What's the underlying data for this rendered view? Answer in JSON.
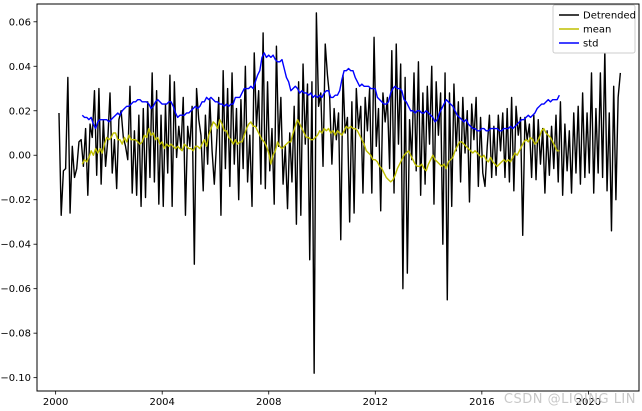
{
  "watermark": "CSDN @LIQING LIN",
  "colors": {
    "detrended": "#000000",
    "mean": "#bfbf00",
    "std": "#0000ff"
  },
  "chart_data": {
    "type": "line",
    "title": "",
    "xlabel": "",
    "ylabel": "",
    "xlim": [
      1999.3,
      2021.9
    ],
    "ylim": [
      -0.106,
      0.068
    ],
    "xticks": [
      "2000",
      "2004",
      "2008",
      "2012",
      "2016",
      "2020"
    ],
    "yticks": [
      "0.06",
      "0.04",
      "0.02",
      "0.00",
      "−0.02",
      "−0.04",
      "−0.06",
      "−0.08",
      "−0.10"
    ],
    "legend": {
      "position": "top-right",
      "entries": [
        "Detrended",
        "mean",
        "std"
      ]
    },
    "grid": false,
    "series": [
      {
        "name": "Detrended",
        "start_year": 2000.125,
        "step_years": 0.0833,
        "values": [
          0.019,
          -0.027,
          -0.007,
          -0.006,
          0.035,
          -0.026,
          0.004,
          -0.01,
          -0.006,
          0.006,
          0.007,
          -0.005,
          0.012,
          -0.018,
          0.014,
          0.008,
          0.029,
          -0.009,
          0.03,
          -0.013,
          0.016,
          -0.005,
          0.007,
          0.028,
          -0.008,
          0.007,
          -0.015,
          0.016,
          0.02,
          0.008,
          0.004,
          -0.002,
          0.031,
          -0.017,
          0.011,
          -0.018,
          0.018,
          -0.023,
          0.021,
          -0.019,
          0.024,
          -0.01,
          0.037,
          -0.012,
          0.029,
          -0.022,
          0.018,
          -0.023,
          0.023,
          -0.008,
          0.036,
          -0.023,
          0.033,
          -0.001,
          0.013,
          0.003,
          0.026,
          -0.027,
          0.013,
          0.004,
          0.022,
          -0.049,
          0.03,
          0.016,
          0.009,
          -0.016,
          0.018,
          -0.004,
          0.025,
          0.002,
          -0.013,
          0.005,
          0.026,
          -0.027,
          0.038,
          -0.006,
          0.03,
          -0.014,
          0.037,
          -0.004,
          0.021,
          -0.02,
          0.025,
          -0.006,
          0.04,
          -0.012,
          0.009,
          -0.023,
          0.046,
          0.013,
          0.029,
          -0.013,
          0.055,
          -0.015,
          0.033,
          -0.007,
          0.012,
          -0.022,
          0.049,
          0.004,
          0.026,
          -0.013,
          0.004,
          -0.024,
          0.01,
          -0.012,
          0.022,
          -0.031,
          0.033,
          -0.027,
          0.041,
          0.005,
          0.032,
          -0.047,
          0.033,
          -0.098,
          0.064,
          0.022,
          0.028,
          -0.005,
          0.05,
          0.036,
          0.026,
          -0.004,
          0.021,
          0.007,
          0.019,
          -0.038,
          0.036,
          0.01,
          0.017,
          -0.03,
          0.024,
          -0.026,
          0.03,
          0.012,
          0.022,
          -0.017,
          0.026,
          0.011,
          0.03,
          -0.017,
          0.053,
          0.004,
          0.021,
          -0.025,
          0.028,
          0.015,
          0.026,
          -0.006,
          0.047,
          -0.017,
          0.05,
          0.005,
          0.041,
          -0.06,
          0.035,
          -0.053,
          0.016,
          -0.002,
          0.037,
          -0.007,
          0.042,
          -0.018,
          0.028,
          -0.013,
          0.031,
          0.005,
          0.04,
          -0.022,
          0.033,
          0.009,
          0.028,
          -0.04,
          0.037,
          -0.065,
          0.028,
          -0.023,
          0.032,
          0.002,
          0.024,
          -0.012,
          0.026,
          0.001,
          0.02,
          -0.021,
          0.023,
          0.007,
          0.026,
          -0.014,
          0.017,
          -0.008,
          -0.014,
          0.004,
          0.018,
          -0.01,
          0.013,
          -0.009,
          0.018,
          0.002,
          0.019,
          -0.01,
          0.021,
          -0.012,
          0.026,
          -0.016,
          0.022,
          0.009,
          0.017,
          -0.036,
          0.017,
          0.007,
          0.014,
          -0.01,
          0.018,
          -0.011,
          0.016,
          -0.004,
          0.012,
          -0.017,
          0.011,
          -0.009,
          0.013,
          -0.006,
          0.018,
          -0.012,
          0.024,
          -0.018,
          0.014,
          -0.007,
          0.011,
          -0.017,
          0.019,
          -0.008,
          0.022,
          -0.013,
          0.028,
          -0.01,
          0.019,
          -0.008,
          0.037,
          -0.017,
          0.021,
          -0.008,
          0.037,
          -0.01,
          0.047,
          -0.016,
          0.019,
          -0.034,
          0.031,
          -0.02,
          0.026,
          0.037
        ]
      },
      {
        "name": "mean",
        "start_year": 2001.0,
        "step_years": 0.0833,
        "values": [
          -0.004,
          -0.002,
          -0.003,
          -0.001,
          0.002,
          0.0,
          0.003,
          0.001,
          0.003,
          0.001,
          0.005,
          0.008,
          0.007,
          0.008,
          0.01,
          0.01,
          0.007,
          0.007,
          0.005,
          0.008,
          0.006,
          0.009,
          0.007,
          0.007,
          0.007,
          0.006,
          0.005,
          0.006,
          0.009,
          0.008,
          0.012,
          0.009,
          0.01,
          0.007,
          0.008,
          0.005,
          0.006,
          0.003,
          0.005,
          0.004,
          0.005,
          0.004,
          0.003,
          0.004,
          0.003,
          0.002,
          0.005,
          0.004,
          0.003,
          0.003,
          0.002,
          0.004,
          0.004,
          0.003,
          0.005,
          0.007,
          0.004,
          0.009,
          0.012,
          0.015,
          0.014,
          0.012,
          0.016,
          0.014,
          0.011,
          0.011,
          0.008,
          0.007,
          0.005,
          0.007,
          0.005,
          0.006,
          0.006,
          0.009,
          0.012,
          0.014,
          0.015,
          0.013,
          0.013,
          0.011,
          0.009,
          0.007,
          0.006,
          0.004,
          0.001,
          -0.004,
          0.0,
          0.002,
          0.006,
          0.004,
          0.003,
          0.004,
          0.005,
          0.006,
          0.006,
          0.01,
          0.013,
          0.016,
          0.014,
          0.012,
          0.01,
          0.008,
          0.008,
          0.007,
          0.007,
          0.008,
          0.009,
          0.011,
          0.01,
          0.012,
          0.011,
          0.012,
          0.01,
          0.011,
          0.009,
          0.011,
          0.01,
          0.009,
          0.011,
          0.013,
          0.012,
          0.013,
          0.012,
          0.012,
          0.011,
          0.009,
          0.007,
          0.005,
          0.002,
          0.001,
          0.0,
          -0.002,
          -0.002,
          -0.003,
          -0.005,
          -0.006,
          -0.008,
          -0.01,
          -0.011,
          -0.012,
          -0.011,
          -0.009,
          -0.006,
          -0.004,
          -0.002,
          0.0,
          0.001,
          0.002,
          0.0,
          -0.002,
          -0.004,
          -0.005,
          -0.005,
          -0.004,
          -0.006,
          -0.007,
          -0.004,
          -0.002,
          0.0,
          -0.002,
          -0.003,
          -0.004,
          -0.005,
          -0.004,
          -0.006,
          -0.003,
          -0.002,
          -0.001,
          0.002,
          0.004,
          0.006,
          0.006,
          0.005,
          0.004,
          0.003,
          0.002,
          0.001,
          0.002,
          0.001,
          0.0,
          -0.001,
          0.0,
          -0.002,
          -0.003,
          -0.001,
          -0.003,
          -0.004,
          -0.005,
          -0.004,
          -0.003,
          -0.002,
          -0.003,
          -0.002,
          -0.003,
          -0.001,
          0.001,
          0.0,
          0.002,
          0.004,
          0.006,
          0.007,
          0.006,
          0.008,
          0.007,
          0.005,
          0.006,
          0.008,
          0.011,
          0.012,
          0.01,
          0.009,
          0.008,
          0.006,
          0.004,
          0.002,
          0.002
        ]
      },
      {
        "name": "std",
        "start_year": 2001.0,
        "step_years": 0.0833,
        "values": [
          0.018,
          0.017,
          0.017,
          0.016,
          0.017,
          0.014,
          0.012,
          0.015,
          0.016,
          0.016,
          0.016,
          0.016,
          0.015,
          0.016,
          0.017,
          0.018,
          0.019,
          0.018,
          0.02,
          0.021,
          0.022,
          0.022,
          0.023,
          0.024,
          0.024,
          0.025,
          0.025,
          0.024,
          0.024,
          0.024,
          0.023,
          0.021,
          0.022,
          0.024,
          0.025,
          0.024,
          0.023,
          0.023,
          0.023,
          0.024,
          0.024,
          0.022,
          0.019,
          0.017,
          0.018,
          0.018,
          0.018,
          0.019,
          0.019,
          0.02,
          0.021,
          0.022,
          0.021,
          0.022,
          0.024,
          0.024,
          0.026,
          0.025,
          0.026,
          0.025,
          0.024,
          0.024,
          0.023,
          0.023,
          0.022,
          0.023,
          0.022,
          0.023,
          0.023,
          0.026,
          0.026,
          0.026,
          0.028,
          0.03,
          0.03,
          0.03,
          0.031,
          0.03,
          0.033,
          0.036,
          0.038,
          0.044,
          0.046,
          0.044,
          0.045,
          0.044,
          0.045,
          0.043,
          0.042,
          0.042,
          0.043,
          0.039,
          0.035,
          0.033,
          0.029,
          0.03,
          0.031,
          0.03,
          0.028,
          0.029,
          0.028,
          0.028,
          0.027,
          0.028,
          0.026,
          0.027,
          0.026,
          0.027,
          0.026,
          0.028,
          0.029,
          0.029,
          0.026,
          0.026,
          0.027,
          0.027,
          0.029,
          0.034,
          0.038,
          0.038,
          0.039,
          0.038,
          0.038,
          0.035,
          0.033,
          0.031,
          0.032,
          0.031,
          0.031,
          0.031,
          0.03,
          0.03,
          0.03,
          0.026,
          0.025,
          0.024,
          0.023,
          0.023,
          0.024,
          0.028,
          0.03,
          0.031,
          0.03,
          0.03,
          0.029,
          0.025,
          0.024,
          0.022,
          0.02,
          0.02,
          0.019,
          0.02,
          0.02,
          0.019,
          0.019,
          0.02,
          0.019,
          0.018,
          0.017,
          0.015,
          0.016,
          0.019,
          0.021,
          0.023,
          0.025,
          0.024,
          0.023,
          0.022,
          0.02,
          0.018,
          0.017,
          0.016,
          0.015,
          0.016,
          0.014,
          0.013,
          0.012,
          0.012,
          0.011,
          0.011,
          0.012,
          0.012,
          0.011,
          0.011,
          0.012,
          0.012,
          0.012,
          0.012,
          0.011,
          0.011,
          0.012,
          0.012,
          0.012,
          0.013,
          0.012,
          0.013,
          0.014,
          0.015,
          0.016,
          0.016,
          0.017,
          0.018,
          0.017,
          0.018,
          0.019,
          0.021,
          0.022,
          0.023,
          0.023,
          0.024,
          0.025,
          0.024,
          0.025,
          0.025,
          0.025,
          0.027
        ]
      }
    ]
  }
}
